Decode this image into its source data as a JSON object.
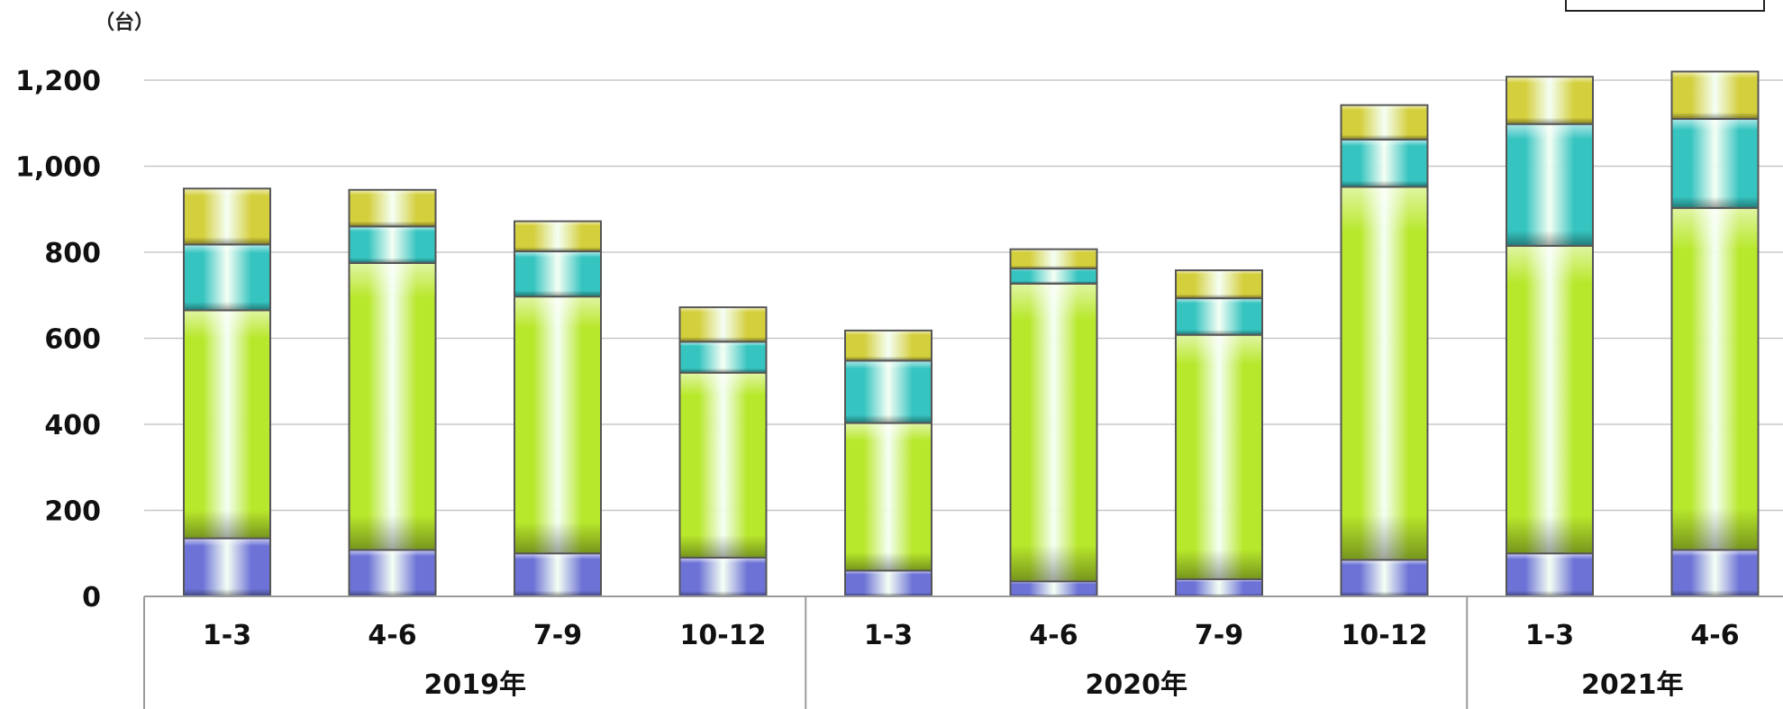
{
  "chart_data": {
    "type": "bar",
    "stacked": true,
    "unit_label": "（台）",
    "ylim": [
      0,
      1200
    ],
    "yticks": [
      0,
      200,
      400,
      600,
      800,
      1000,
      1200
    ],
    "ytick_labels": [
      "0",
      "200",
      "400",
      "600",
      "800",
      "1,000",
      "1,200"
    ],
    "grid": true,
    "categories": [
      "1-3",
      "4-6",
      "7-9",
      "10-12",
      "1-3",
      "4-6",
      "7-9",
      "10-12",
      "1-3",
      "4-6"
    ],
    "groups": [
      {
        "label": "2019年",
        "count": 4
      },
      {
        "label": "2020年",
        "count": 4
      },
      {
        "label": "2021年",
        "count": 2
      }
    ],
    "series": [
      {
        "values": [
          135,
          108,
          100,
          90,
          60,
          35,
          40,
          85,
          100,
          108
        ]
      },
      {
        "values": [
          530,
          667,
          597,
          430,
          343,
          692,
          568,
          867,
          715,
          795
        ]
      },
      {
        "values": [
          153,
          85,
          105,
          72,
          145,
          35,
          85,
          110,
          283,
          207
        ]
      },
      {
        "values": [
          130,
          85,
          70,
          80,
          70,
          45,
          65,
          80,
          110,
          110
        ]
      }
    ],
    "colors": [
      "#6d73d6",
      "#b8e82c",
      "#36c4c0",
      "#d4cf3c"
    ],
    "legend": {
      "position": "top-right"
    }
  }
}
